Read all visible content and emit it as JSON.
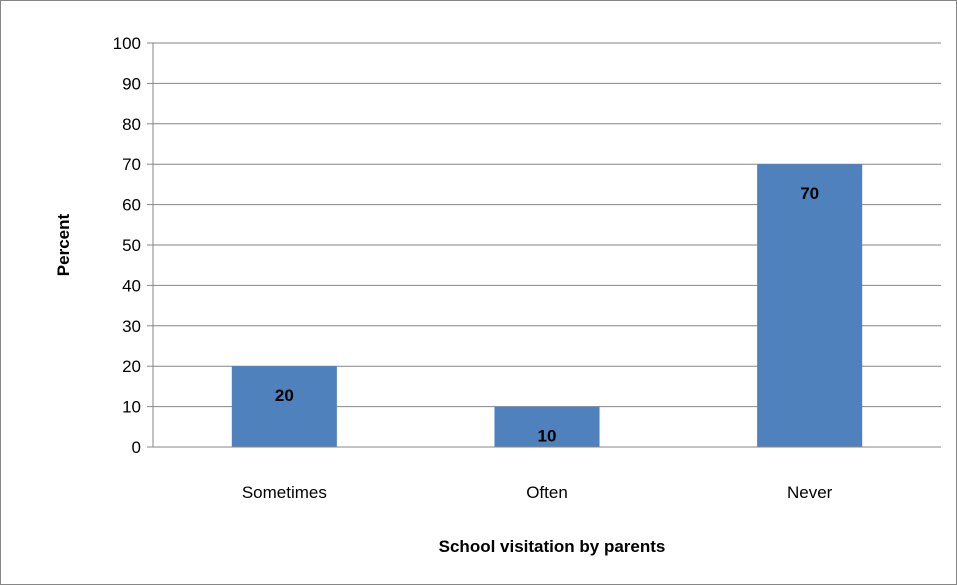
{
  "chart_data": {
    "type": "bar",
    "categories": [
      "Sometimes",
      "Often",
      "Never"
    ],
    "values": [
      20,
      10,
      70
    ],
    "data_labels": [
      "20",
      "10",
      "70"
    ],
    "xlabel": "School visitation by parents",
    "ylabel": "Percent",
    "ylim": [
      0,
      100
    ],
    "yticks": [
      "0",
      "10",
      "20",
      "30",
      "40",
      "50",
      "60",
      "70",
      "80",
      "90",
      "100"
    ],
    "grid": true,
    "legend": "none",
    "bar_color": "#4F81BD",
    "grid_color": "#868686"
  }
}
